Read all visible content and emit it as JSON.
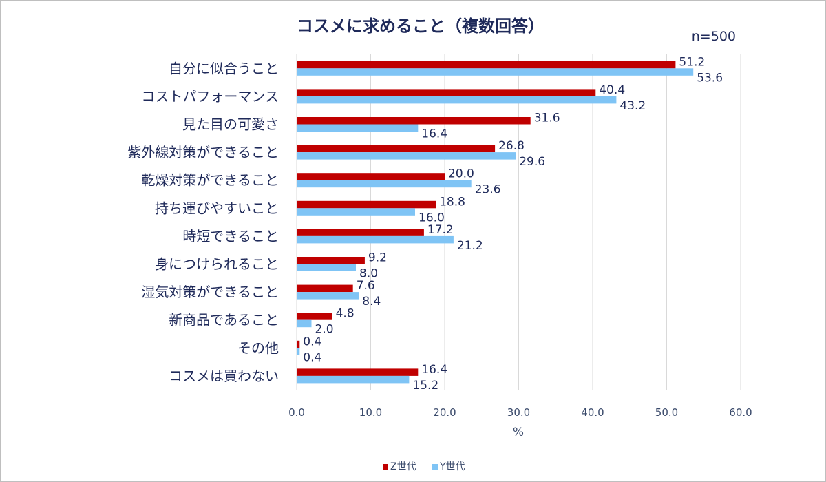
{
  "chart_data": {
    "type": "bar",
    "orientation": "horizontal",
    "title": "コスメに求めること（複数回答）",
    "note": "n=500",
    "xlabel": "%",
    "xlim": [
      0,
      60
    ],
    "xticks": [
      "0.0",
      "10.0",
      "20.0",
      "30.0",
      "40.0",
      "50.0",
      "60.0"
    ],
    "grid": true,
    "legend_position": "bottom",
    "categories": [
      "自分に似合うこと",
      "コストパフォーマンス",
      "見た目の可愛さ",
      "紫外線対策ができること",
      "乾燥対策ができること",
      "持ち運びやすいこと",
      "時短できること",
      "身につけられること",
      "湿気対策ができること",
      "新商品であること",
      "その他",
      "コスメは買わない"
    ],
    "series": [
      {
        "name": "Z世代",
        "color": "#c00000",
        "values": [
          51.2,
          40.4,
          31.6,
          26.8,
          20.0,
          18.8,
          17.2,
          9.2,
          7.6,
          4.8,
          0.4,
          16.4
        ],
        "labels": [
          "51.2",
          "40.4",
          "31.6",
          "26.8",
          "20.0",
          "18.8",
          "17.2",
          "9.2",
          "7.6",
          "4.8",
          "0.4",
          "16.4"
        ]
      },
      {
        "name": "Y世代",
        "color": "#7fc4f5",
        "values": [
          53.6,
          43.2,
          16.4,
          29.6,
          23.6,
          16.0,
          21.2,
          8.0,
          8.4,
          2.0,
          0.4,
          15.2
        ],
        "labels": [
          "53.6",
          "43.2",
          "16.4",
          "29.6",
          "23.6",
          "16.0",
          "21.2",
          "8.0",
          "8.4",
          "2.0",
          "0.4",
          "15.2"
        ]
      }
    ]
  }
}
